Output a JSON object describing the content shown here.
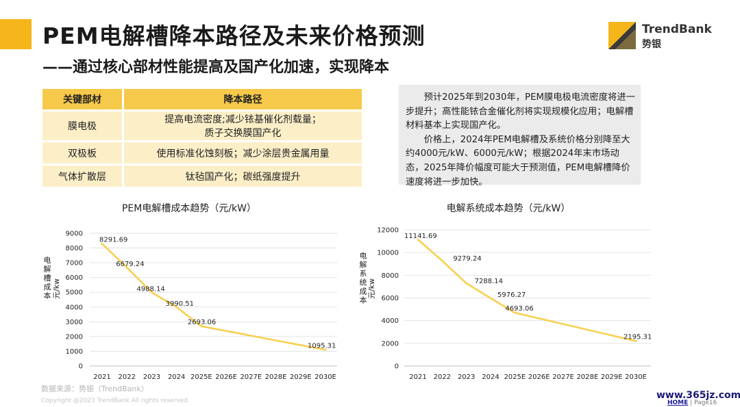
{
  "header": {
    "title": "PEM电解槽降本路径及未来价格预测",
    "subtitle": "——通过核心部材性能提高及国产化加速，实现降本",
    "logo_text": "TrendBank",
    "logo_cn": "势银",
    "accent_color": "#f5b51b"
  },
  "table": {
    "headers": [
      "关键部材",
      "降本路径"
    ],
    "rows": [
      {
        "part": "膜电极",
        "path_line1": "提高电流密度;减少铱基催化剂载量；",
        "path_line2": "质子交换膜国产化"
      },
      {
        "part": "双极板",
        "path_line1": "使用标准化蚀刻板；减少涂层贵金属用量",
        "path_line2": ""
      },
      {
        "part": "气体扩散层",
        "path_line1": "钛毡国产化；碳纸强度提升",
        "path_line2": ""
      }
    ]
  },
  "note": {
    "p1": "预计2025年到2030年，PEM膜电极电流密度将进一步提升；高性能铱合金催化剂将实现规模化应用；电解槽材料基本上实现国产化。",
    "p2": "价格上，2024年PEM电解槽及系统价格分别降至大约4000元/kW、6000元/kW；根据2024年末市场动态，2025年降价幅度可能大于预测值，PEM电解槽降价速度将进一步加快。"
  },
  "chart_data": [
    {
      "type": "line",
      "title": "PEM电解槽成本趋势（元/kW）",
      "ylabel_left": "电解槽成本",
      "ylabel_right": "元/kw",
      "categories": [
        "2021",
        "2022",
        "2023",
        "2024",
        "2025E",
        "2026E",
        "2027E",
        "2028E",
        "2029E",
        "2030E"
      ],
      "points": [
        {
          "x": "2021",
          "y": 8291.69,
          "label": "8291.69"
        },
        {
          "x": "2022",
          "y": 6679.24,
          "label": "6679.24"
        },
        {
          "x": "2023",
          "y": 4988.14,
          "label": "4988.14"
        },
        {
          "x": "2024",
          "y": 3990.51,
          "label": "3990.51"
        },
        {
          "x": "2025E",
          "y": 2693.06,
          "label": "2693.06"
        },
        {
          "x": "2030E",
          "y": 1095.31,
          "label": "1095.31"
        }
      ],
      "ylim": [
        0,
        9000
      ],
      "yticks": [
        0,
        1000,
        2000,
        3000,
        4000,
        5000,
        6000,
        7000,
        8000,
        9000
      ],
      "grid": true,
      "color": "#f7d050"
    },
    {
      "type": "line",
      "title": "电解系统成本趋势（元/kW）",
      "ylabel_left": "电解系统成本",
      "ylabel_right": "元/kw",
      "categories": [
        "2021",
        "2022",
        "2023",
        "2024",
        "2025E",
        "2026E",
        "2027E",
        "2028E",
        "2029E",
        "2030E"
      ],
      "points": [
        {
          "x": "2021",
          "y": 11141.69,
          "label": "11141.69"
        },
        {
          "x": "2022",
          "y": 9279.24,
          "label": "9279.24"
        },
        {
          "x": "2023",
          "y": 7288.14,
          "label": "7288.14"
        },
        {
          "x": "2024",
          "y": 5976.27,
          "label": "5976.27"
        },
        {
          "x": "2025E",
          "y": 4693.06,
          "label": "4693.06"
        },
        {
          "x": "2030E",
          "y": 2195.31,
          "label": "2195.31"
        }
      ],
      "ylim": [
        0,
        12000
      ],
      "yticks": [
        0,
        2000,
        4000,
        6000,
        8000,
        10000,
        12000
      ],
      "grid": true,
      "color": "#f7d050"
    }
  ],
  "footer": {
    "source": "数据来源：势银（TrendBank）",
    "copyright": "Copyright @2023 TrendBank All rights reserved",
    "watermark": "www.365jz.com",
    "home_link": "HOME",
    "page": "| Page16"
  }
}
